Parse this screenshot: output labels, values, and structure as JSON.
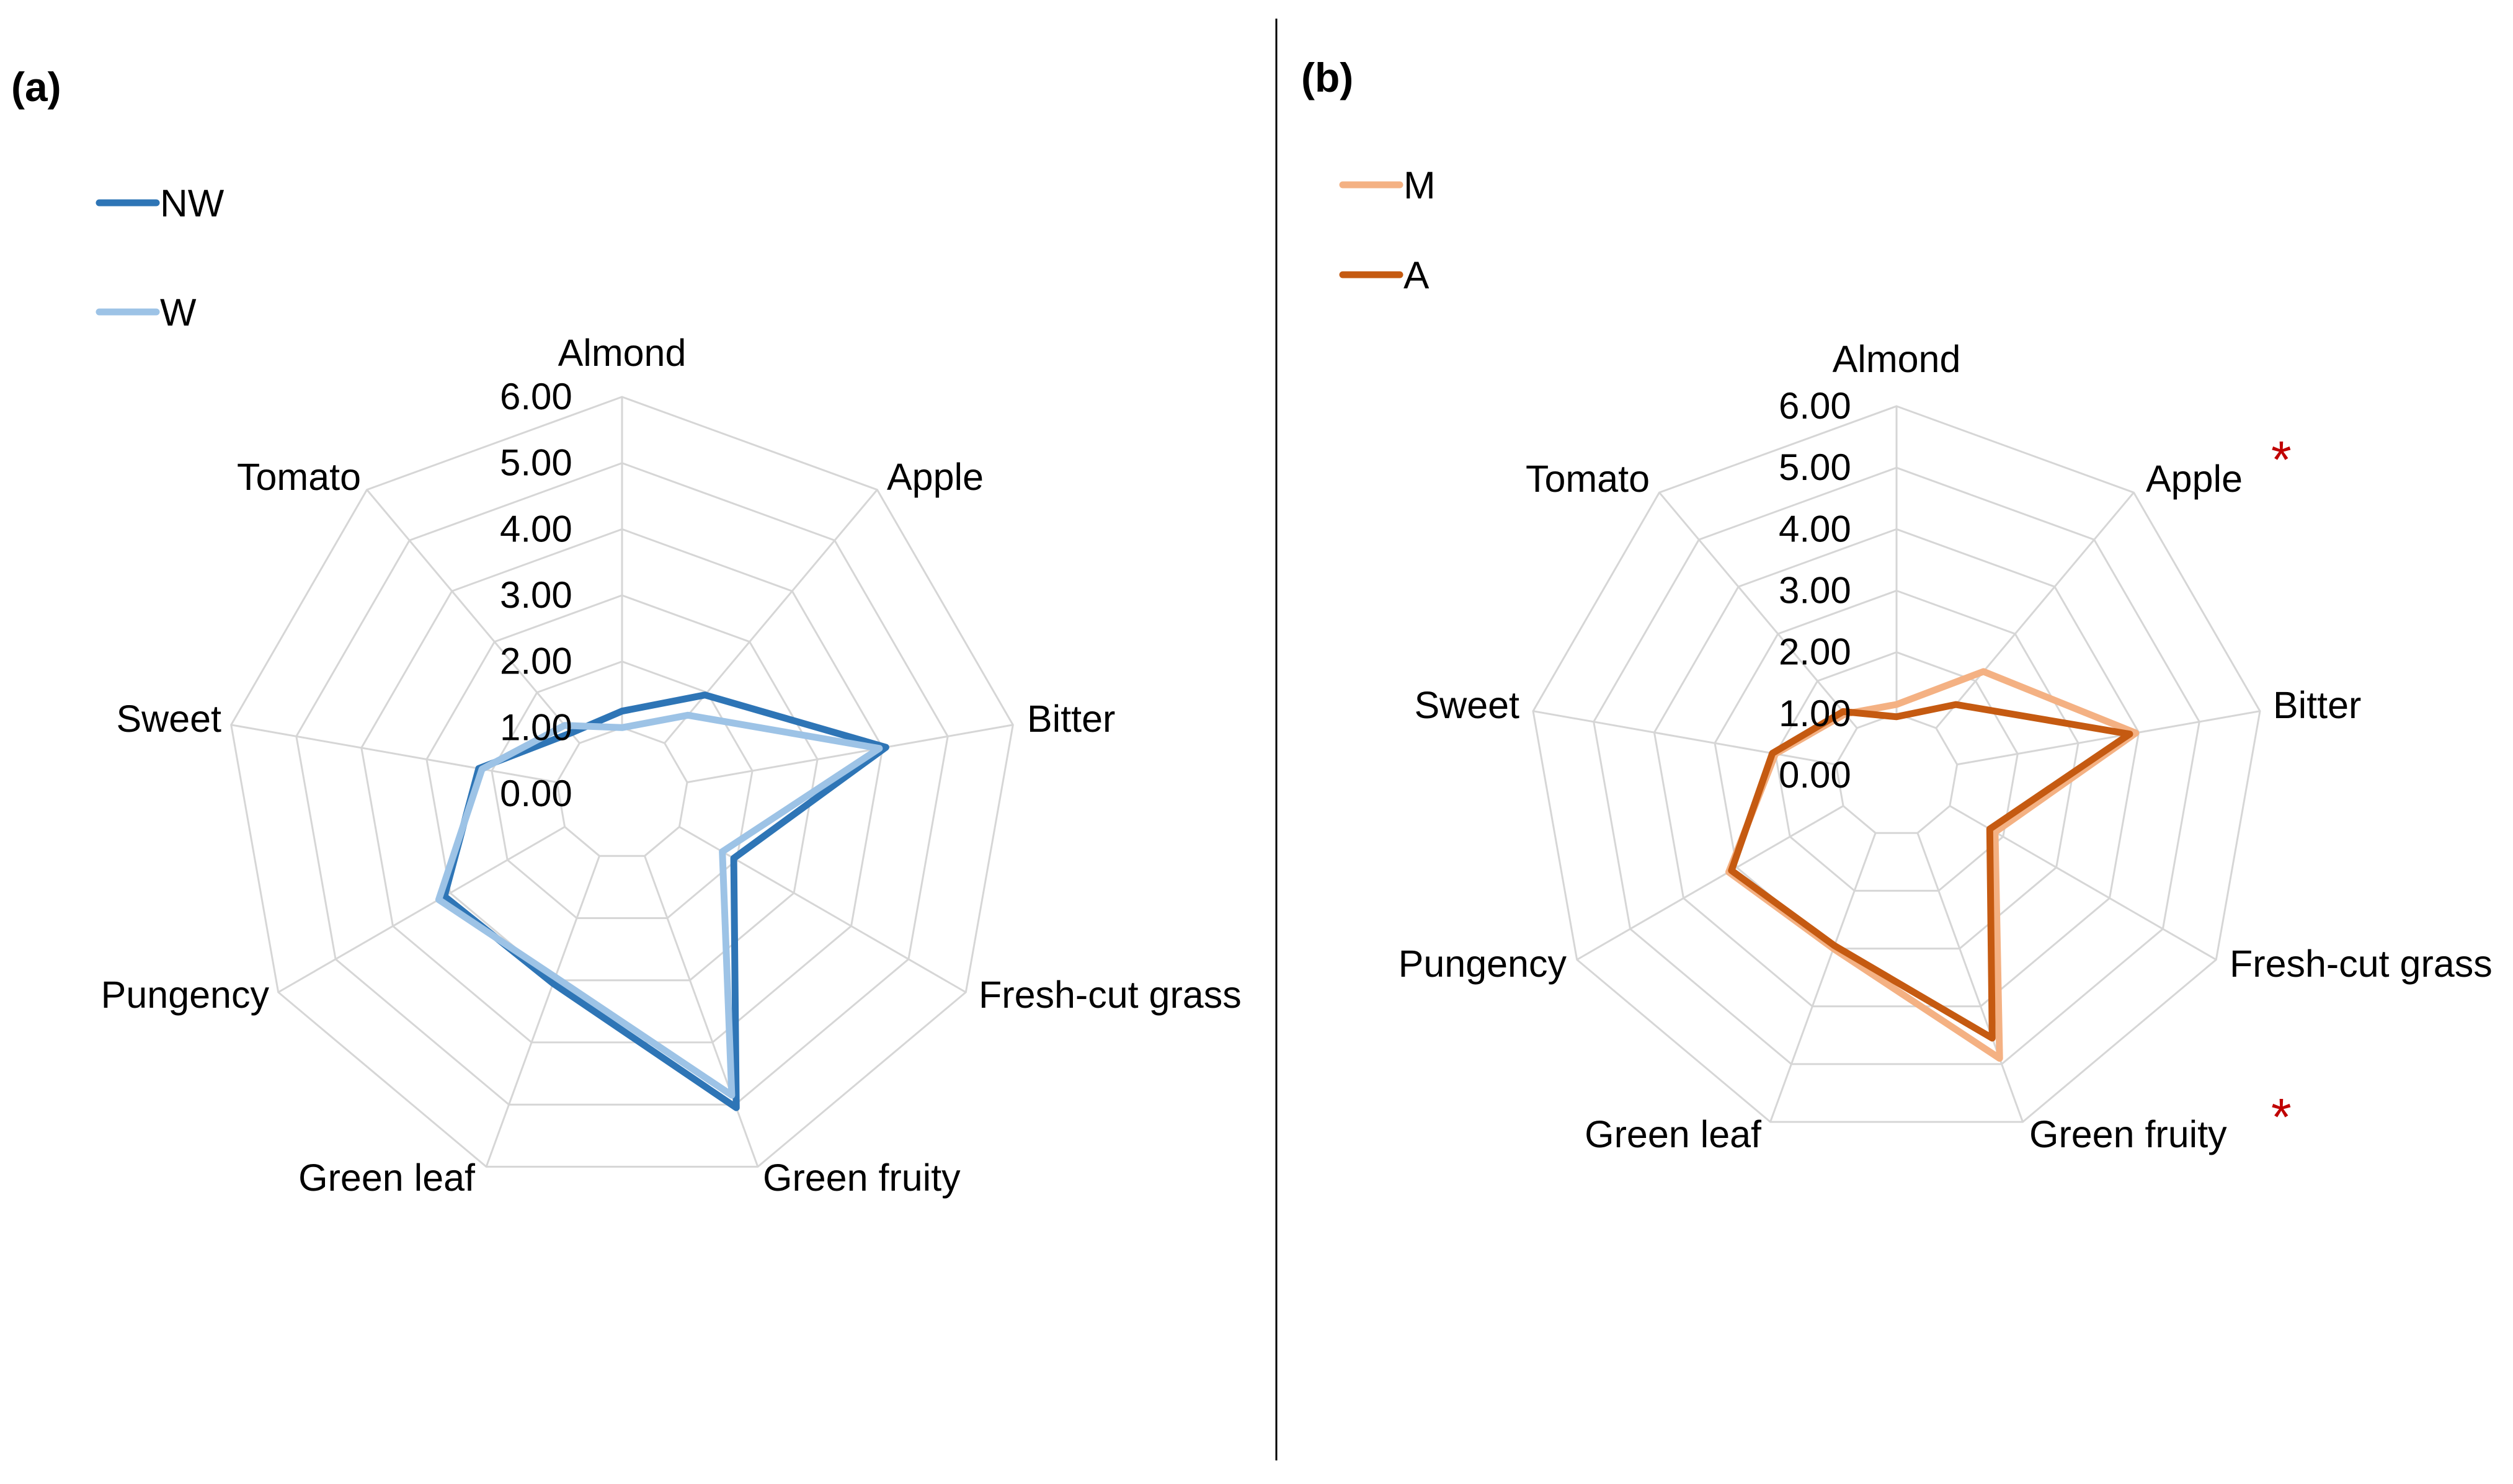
{
  "chart_data": [
    {
      "type": "radar",
      "panel_label": "(a)",
      "categories": [
        "Almond",
        "Apple",
        "Bitter",
        "Fresh-cut grass",
        "Green fruity",
        "Green leaf",
        "Pungency",
        "Sweet",
        "Tomato"
      ],
      "rlim": [
        0,
        6
      ],
      "ticks": [
        "6.00",
        "5.00",
        "4.00",
        "3.00",
        "2.00",
        "1.00",
        "0.00"
      ],
      "tick_values": [
        6,
        5,
        4,
        3,
        2,
        1,
        0
      ],
      "grid": true,
      "legend_position": "top-left",
      "significant": [],
      "series": [
        {
          "name": "NW",
          "color": "#2e75b6",
          "values": [
            1.25,
            1.95,
            4.05,
            1.95,
            5.05,
            3.05,
            3.1,
            2.2,
            1.2
          ]
        },
        {
          "name": "W",
          "color": "#9dc3e6",
          "values": [
            1.0,
            1.55,
            3.95,
            1.75,
            4.85,
            2.95,
            3.2,
            2.15,
            1.35
          ]
        }
      ]
    },
    {
      "type": "radar",
      "panel_label": "(b)",
      "categories": [
        "Almond",
        "Apple",
        "Bitter",
        "Fresh-cut grass",
        "Green fruity",
        "Green leaf",
        "Pungency",
        "Sweet",
        "Tomato"
      ],
      "rlim": [
        0,
        6
      ],
      "ticks": [
        "6.00",
        "5.00",
        "4.00",
        "3.00",
        "2.00",
        "1.00",
        "0.00"
      ],
      "tick_values": [
        6,
        5,
        4,
        3,
        2,
        1,
        0
      ],
      "grid": true,
      "legend_position": "top-left",
      "significant": [
        "Apple",
        "Green fruity"
      ],
      "significance_marker": "*",
      "series": [
        {
          "name": "M",
          "color": "#f4b183",
          "values": [
            1.15,
            2.2,
            3.95,
            1.85,
            4.9,
            3.0,
            3.15,
            2.0,
            1.3
          ]
        },
        {
          "name": "A",
          "color": "#c55a11",
          "values": [
            0.95,
            1.5,
            3.85,
            1.75,
            4.55,
            2.95,
            3.1,
            2.05,
            1.35
          ]
        }
      ]
    }
  ]
}
